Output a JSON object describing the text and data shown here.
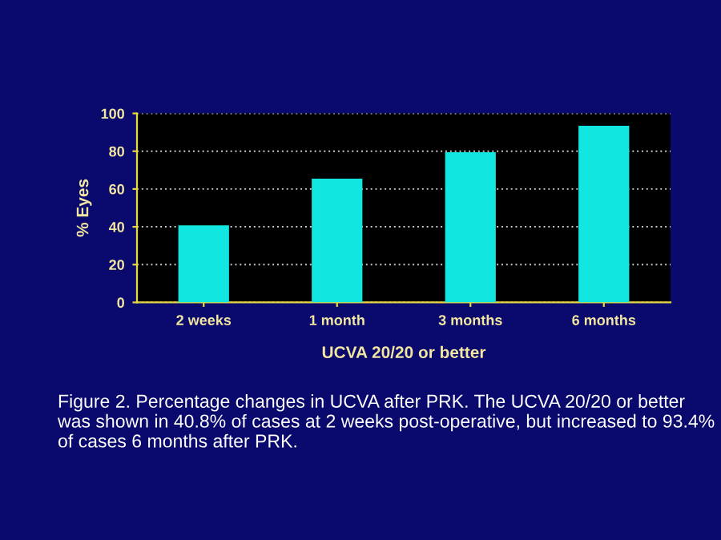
{
  "chart_data": {
    "type": "bar",
    "xlabel": "UCVA 20/20 or better",
    "ylabel": "% Eyes",
    "categories": [
      "2 weeks",
      "1 month",
      "3 months",
      "6 months"
    ],
    "values": [
      40.8,
      65.5,
      79.5,
      93.4
    ],
    "color": "#11e6e0",
    "ylim": [
      0,
      100
    ],
    "yticks": [
      0,
      20,
      40,
      60,
      80,
      100
    ],
    "grid": "y",
    "annotations": [
      "Figure 2. Percentage changes in UCVA after PRK. The UCVA 20/20 or better was shown in 40.8% of cases at 2 weeks post-operative, but increased to 93.4% of cases 6 months after PRK."
    ]
  }
}
